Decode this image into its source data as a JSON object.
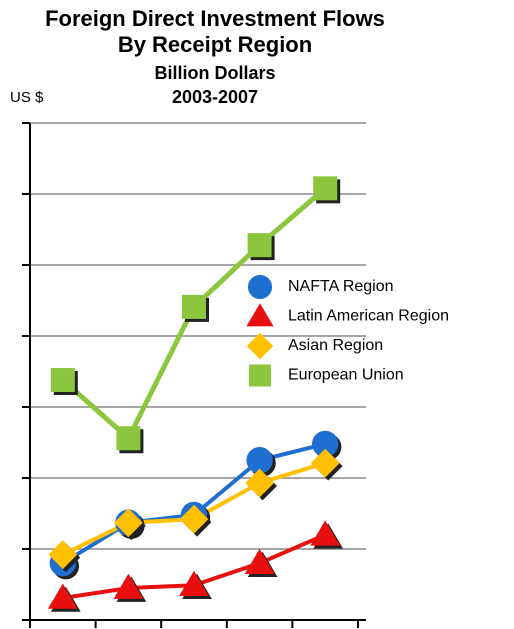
{
  "chart_data": {
    "type": "line",
    "title": [
      "Foreign Direct Investment Flows",
      "By Receipt Region",
      "Billion Dollars",
      "2003-2007"
    ],
    "y_label": "US $",
    "categories": [
      null,
      null,
      null,
      null,
      null
    ],
    "series": [
      {
        "name": "NAFTA Region",
        "color": "#1f6fd1",
        "marker": "circle",
        "values": [
          0.8,
          1.37,
          1.48,
          2.25,
          2.48
        ]
      },
      {
        "name": "Latin American Region",
        "color": "#e8100f",
        "marker": "triangle",
        "values": [
          0.31,
          0.45,
          0.49,
          0.8,
          1.2
        ]
      },
      {
        "name": "Asian Region",
        "color": "#ffc000",
        "marker": "diamond",
        "values": [
          0.92,
          1.37,
          1.42,
          1.93,
          2.21
        ]
      },
      {
        "name": "European Union",
        "color": "#8cc63f",
        "marker": "square",
        "values": [
          3.38,
          2.56,
          4.41,
          5.28,
          6.08
        ]
      }
    ],
    "ylim": [
      0,
      7
    ],
    "yticks": [
      0,
      1,
      2,
      3,
      4,
      5,
      6,
      7
    ],
    "grid": true,
    "legend": "right"
  }
}
